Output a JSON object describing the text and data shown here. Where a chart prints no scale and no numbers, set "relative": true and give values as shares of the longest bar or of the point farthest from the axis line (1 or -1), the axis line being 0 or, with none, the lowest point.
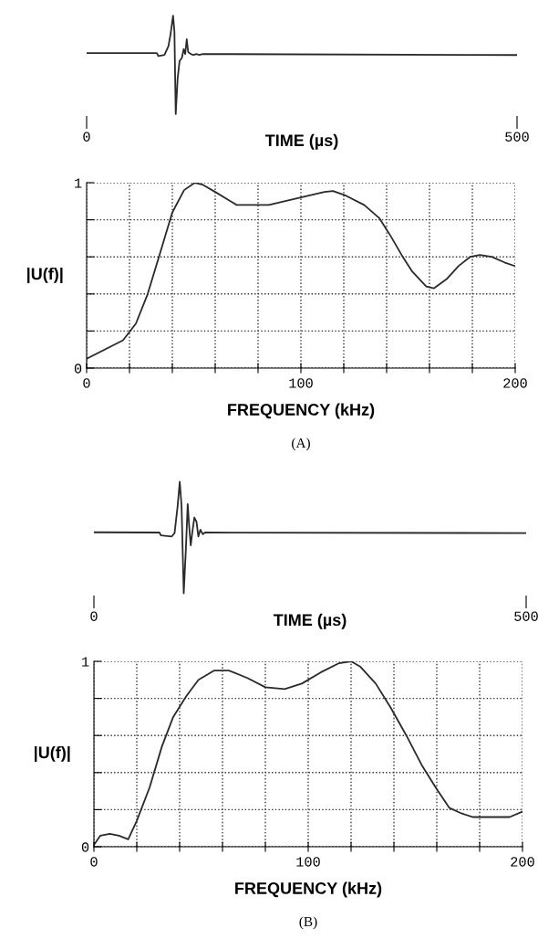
{
  "chart_data": [
    {
      "type": "line",
      "relative": true,
      "xlabel": "TIME (µs)",
      "xlim": [
        0,
        500
      ],
      "xticks": [
        0,
        500
      ],
      "color": "#2a2a2a",
      "x": [
        0,
        81.6,
        83.3,
        90.4,
        95,
        97.5,
        100.4,
        102,
        103.5,
        105.7,
        108,
        110.6,
        112.8,
        114.5,
        116.3,
        118,
        121,
        124,
        127.7,
        131,
        135,
        500
      ],
      "values": [
        0.62,
        0.62,
        0.59,
        0.6,
        0.69,
        0.81,
        1.0,
        0.84,
        0,
        0.36,
        0.54,
        0.57,
        0.66,
        0.61,
        0.76,
        0.63,
        0.61,
        0.6,
        0.61,
        0.6,
        0.61,
        0.6
      ]
    },
    {
      "type": "line",
      "xlabel": "FREQUENCY (kHz)",
      "ylabel": "|U(f)|",
      "annotations": [
        "(A)"
      ],
      "grid": true,
      "color": "#2a2a2a",
      "xlim": [
        0,
        200
      ],
      "xticks": [
        0,
        {
          "value": 20,
          "label": null
        },
        {
          "value": 40,
          "label": null
        },
        {
          "value": 60,
          "label": null
        },
        {
          "value": 80,
          "label": null
        },
        100,
        {
          "value": 120,
          "label": null
        },
        {
          "value": 140,
          "label": null
        },
        {
          "value": 160,
          "label": null
        },
        {
          "value": 180,
          "label": null
        },
        200
      ],
      "ylim": [
        0,
        1
      ],
      "yticks": [
        0,
        {
          "value": 0.2,
          "label": null
        },
        {
          "value": 0.4,
          "label": null
        },
        {
          "value": 0.6,
          "label": null
        },
        {
          "value": 0.8,
          "label": null
        },
        1
      ],
      "x": [
        0,
        17,
        23,
        28.5,
        34,
        40,
        45.5,
        50.5,
        54,
        60,
        70,
        85,
        100,
        111,
        115,
        121,
        129.5,
        136.5,
        142,
        147,
        152,
        158.5,
        162,
        168,
        173.5,
        179,
        183.5,
        189,
        195,
        200
      ],
      "values": [
        0.05,
        0.15,
        0.24,
        0.4,
        0.61,
        0.84,
        0.96,
        1.0,
        0.99,
        0.95,
        0.88,
        0.88,
        0.92,
        0.95,
        0.955,
        0.93,
        0.88,
        0.81,
        0.71,
        0.61,
        0.52,
        0.44,
        0.43,
        0.48,
        0.55,
        0.6,
        0.61,
        0.6,
        0.57,
        0.55
      ]
    },
    {
      "type": "line",
      "relative": true,
      "xlabel": "TIME (µs)",
      "xlim": [
        0,
        500
      ],
      "xticks": [
        0,
        500
      ],
      "color": "#2a2a2a",
      "x": [
        0,
        75.7,
        77.5,
        90,
        93.3,
        96.8,
        99.3,
        101.4,
        103.9,
        106.3,
        108.5,
        110,
        112,
        113.7,
        116.2,
        118.7,
        120.8,
        123.2,
        126,
        128.5,
        500
      ],
      "values": [
        0.547,
        0.545,
        0.52,
        0.51,
        0.54,
        0.78,
        1.0,
        0.78,
        0,
        0.38,
        0.8,
        0.62,
        0.43,
        0.54,
        0.68,
        0.64,
        0.51,
        0.57,
        0.53,
        0.545,
        0.54
      ]
    },
    {
      "type": "line",
      "xlabel": "FREQUENCY (kHz)",
      "ylabel": "|U(f)|",
      "annotations": [
        "(B)"
      ],
      "grid": true,
      "color": "#2a2a2a",
      "xlim": [
        0,
        200
      ],
      "xticks": [
        0,
        {
          "value": 20,
          "label": null
        },
        {
          "value": 40,
          "label": null
        },
        {
          "value": 60,
          "label": null
        },
        {
          "value": 80,
          "label": null
        },
        100,
        {
          "value": 120,
          "label": null
        },
        {
          "value": 140,
          "label": null
        },
        {
          "value": 160,
          "label": null
        },
        {
          "value": 180,
          "label": null
        },
        200
      ],
      "ylim": [
        0,
        1
      ],
      "yticks": [
        0,
        {
          "value": 0.2,
          "label": null
        },
        {
          "value": 0.4,
          "label": null
        },
        {
          "value": 0.6,
          "label": null
        },
        {
          "value": 0.8,
          "label": null
        },
        1
      ],
      "x": [
        0,
        3,
        7.4,
        11.7,
        16,
        20,
        26,
        31.7,
        37,
        43,
        48.8,
        56,
        63,
        71.6,
        80,
        89,
        97,
        105.8,
        114.4,
        120,
        124.4,
        131.5,
        138.5,
        145.8,
        153,
        160,
        165.8,
        171.5,
        177,
        194,
        200
      ],
      "values": [
        0.01,
        0.06,
        0.07,
        0.06,
        0.04,
        0.14,
        0.32,
        0.54,
        0.7,
        0.81,
        0.9,
        0.95,
        0.95,
        0.91,
        0.86,
        0.85,
        0.88,
        0.94,
        0.99,
        1.0,
        0.97,
        0.88,
        0.75,
        0.6,
        0.44,
        0.31,
        0.21,
        0.18,
        0.16,
        0.16,
        0.19
      ]
    }
  ]
}
